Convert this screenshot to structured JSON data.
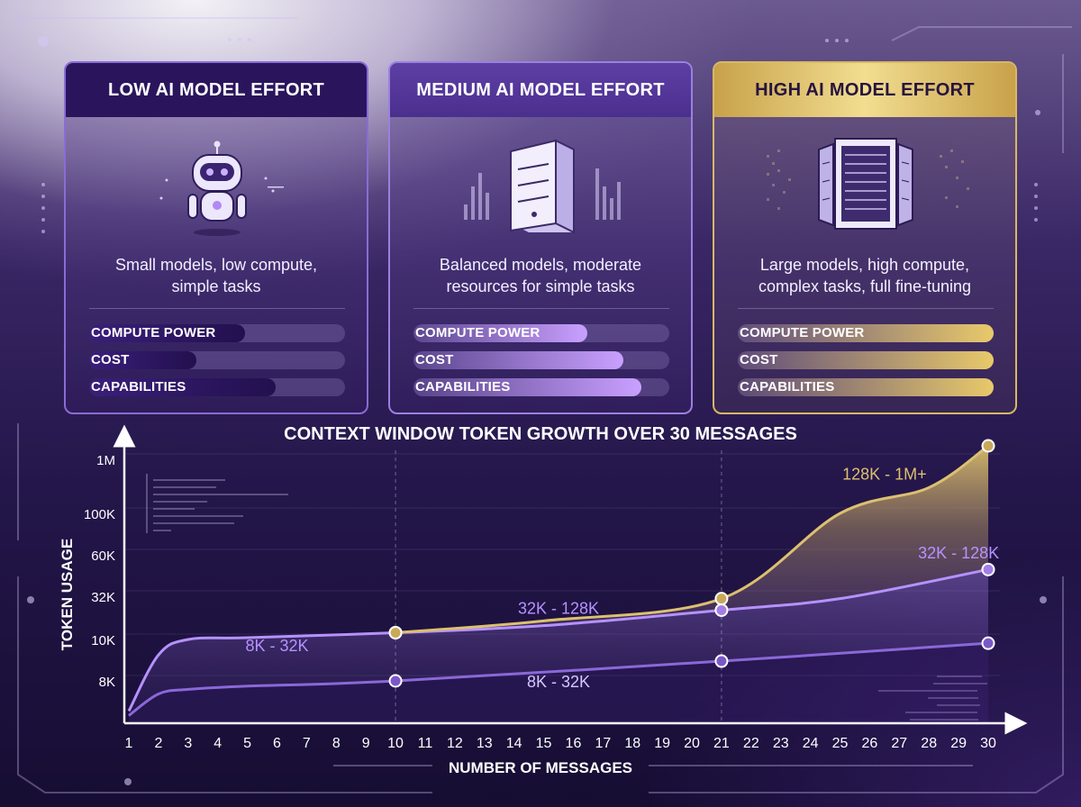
{
  "cards": [
    {
      "title": "LOW AI MODEL EFFORT",
      "description": [
        "Small models, low compute,",
        "simple tasks"
      ],
      "icon": "robot-icon",
      "metrics": [
        {
          "label": "COMPUTE POWER",
          "level": 0.61
        },
        {
          "label": "COST",
          "level": 0.42
        },
        {
          "label": "CAPABILITIES",
          "level": 0.73
        }
      ]
    },
    {
      "title": "MEDIUM AI MODEL EFFORT",
      "description": [
        "Balanced models, moderate",
        "resources for simple tasks"
      ],
      "icon": "server-icon",
      "metrics": [
        {
          "label": "COMPUTE POWER",
          "level": 0.68
        },
        {
          "label": "COST",
          "level": 0.82
        },
        {
          "label": "CAPABILITIES",
          "level": 0.89
        }
      ]
    },
    {
      "title": "HIGH AI MODEL EFFORT",
      "description": [
        "Large models, high compute,",
        "complex tasks, full fine-tuning"
      ],
      "icon": "server-rack-icon",
      "metrics": [
        {
          "label": "COMPUTE POWER",
          "level": 1.0
        },
        {
          "label": "COST",
          "level": 1.0
        },
        {
          "label": "CAPABILITIES",
          "level": 1.0
        }
      ]
    }
  ],
  "colors": {
    "low": "#8b68d8",
    "medium": "#b592ff",
    "high": "#dcc070",
    "marker_high": "#c9a85a"
  },
  "chart_data": {
    "type": "area",
    "title": "CONTEXT WINDOW TOKEN GROWTH OVER 30 MESSAGES",
    "xlabel": "NUMBER OF MESSAGES",
    "ylabel": "TOKEN USAGE",
    "x_ticks": [
      1,
      2,
      3,
      4,
      5,
      6,
      7,
      8,
      9,
      10,
      11,
      12,
      13,
      14,
      15,
      16,
      17,
      18,
      19,
      20,
      21,
      22,
      23,
      24,
      25,
      26,
      27,
      28,
      29,
      30
    ],
    "y_ticks": [
      "8K",
      "10K",
      "32K",
      "60K",
      "100K",
      "1M"
    ],
    "xlim": [
      1,
      30
    ],
    "grid": true,
    "reference_lines_x": [
      10,
      21
    ],
    "series": [
      {
        "key": "low",
        "points": [
          [
            1,
            5200
          ],
          [
            2,
            6800
          ],
          [
            3,
            7200
          ],
          [
            5,
            7500
          ],
          [
            10,
            8000
          ],
          [
            21,
            8900
          ],
          [
            30,
            9800
          ]
        ],
        "markers": [
          [
            10,
            8000
          ],
          [
            21,
            8900
          ],
          [
            30,
            9800
          ]
        ]
      },
      {
        "key": "medium",
        "points": [
          [
            1,
            5500
          ],
          [
            2,
            9200
          ],
          [
            3,
            10000
          ],
          [
            5,
            10500
          ],
          [
            10,
            12000
          ],
          [
            15,
            14500
          ],
          [
            21,
            22000
          ],
          [
            25,
            30000
          ],
          [
            30,
            48000
          ]
        ],
        "markers": [
          [
            10,
            12000
          ],
          [
            21,
            22000
          ],
          [
            30,
            48000
          ]
        ]
      },
      {
        "key": "high",
        "points": [
          [
            10,
            12000
          ],
          [
            15,
            16500
          ],
          [
            21,
            30000
          ],
          [
            25,
            100000
          ],
          [
            28,
            300000
          ],
          [
            30,
            1300000
          ]
        ],
        "markers": [
          [
            10,
            12000
          ],
          [
            21,
            30000
          ],
          [
            30,
            1300000
          ]
        ]
      }
    ],
    "annotations": [
      {
        "text": "8K - 32K",
        "x": 6,
        "y": 9400,
        "series": "medium"
      },
      {
        "text": "8K - 32K",
        "x": 15.5,
        "y": 7400,
        "series": "low"
      },
      {
        "text": "32K - 128K",
        "x": 15.5,
        "y": 20000,
        "series": "medium"
      },
      {
        "text": "32K - 128K",
        "x": 29,
        "y": 57000,
        "series": "medium"
      },
      {
        "text": "128K - 1M+",
        "x": 26.5,
        "y": 420000,
        "series": "high"
      }
    ]
  }
}
